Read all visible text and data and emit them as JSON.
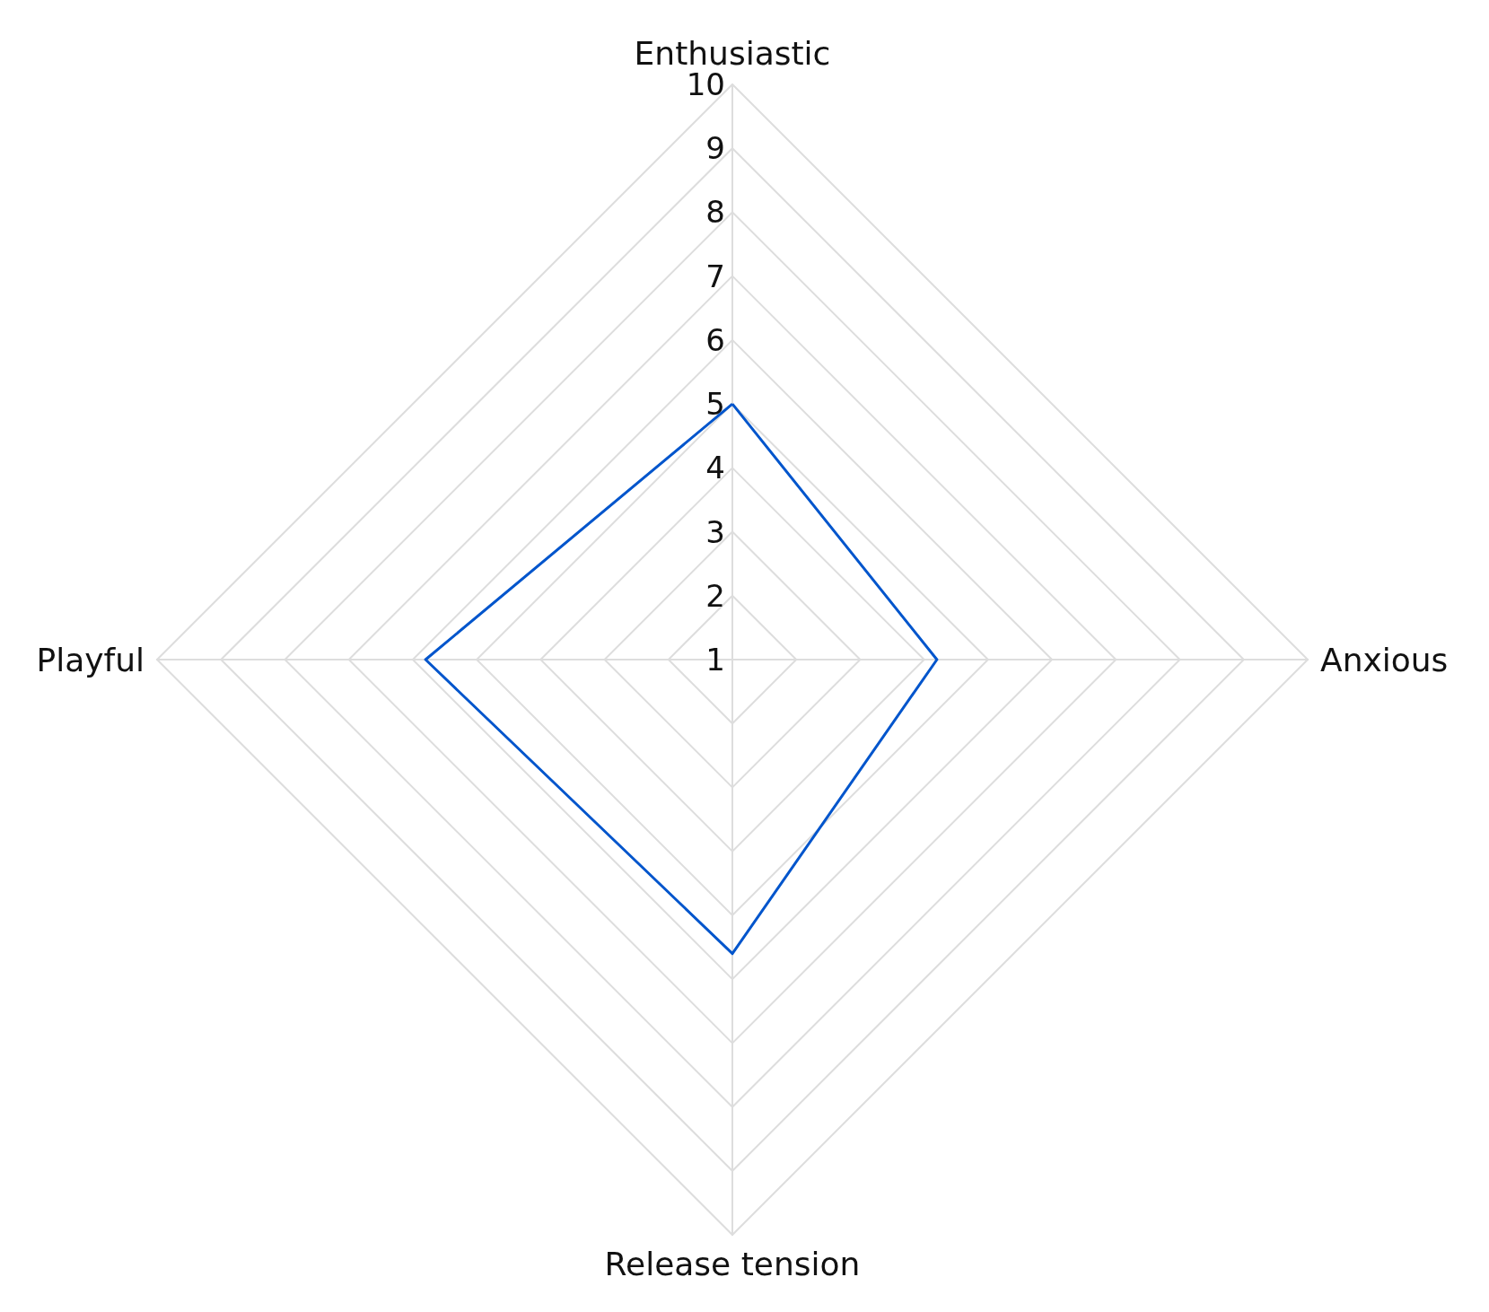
{
  "chart_data": {
    "type": "radar",
    "categories": [
      "Enthusiastic",
      "Anxious",
      "Release tension",
      "Playful"
    ],
    "series": [
      {
        "color": "#0055cc",
        "values": [
          5,
          4.2,
          5.6,
          5.8
        ]
      }
    ],
    "ylim": [
      1,
      10
    ],
    "yticks": [
      1,
      2,
      3,
      4,
      5,
      6,
      7,
      8,
      9,
      10
    ],
    "marker": "none"
  }
}
